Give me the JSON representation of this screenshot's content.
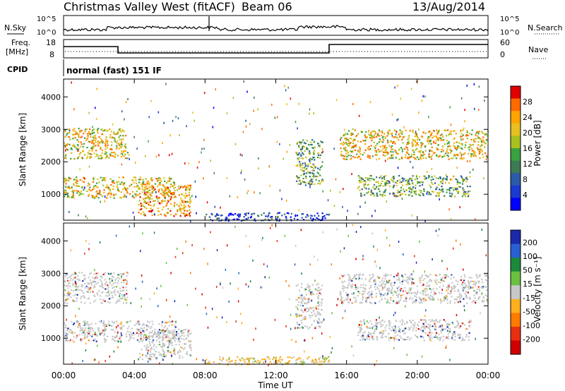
{
  "header": {
    "title": "Christmas Valley West (fitACF)",
    "beam": "Beam 06",
    "date": "13/Aug/2014"
  },
  "panels": {
    "nsky": {
      "left_label": "N.Sky",
      "left_ticks": [
        "10^5",
        "10^0"
      ],
      "right_ticks": [
        "10^5",
        "10^0"
      ],
      "right_label": "N.Search"
    },
    "freq": {
      "left_label_1": "Freq.",
      "left_label_2": "[MHz]",
      "left_ticks": [
        "18",
        "8"
      ],
      "right_ticks": [
        "60",
        "0"
      ],
      "right_label": "Nave"
    },
    "cpid": {
      "label": "CPID",
      "value": "normal (fast) 151 IF"
    }
  },
  "chart_data": [
    {
      "type": "heatmap",
      "name": "power",
      "ylabel": "Slant Range [km]",
      "yticks": [
        1000,
        2000,
        3000,
        4000
      ],
      "ylim": [
        200,
        4550
      ],
      "xticks": [
        "00:00",
        "04:00",
        "08:00",
        "12:00",
        "16:00",
        "20:00",
        "00:00"
      ],
      "xlim_hours": [
        0,
        24
      ],
      "colorbar": {
        "label": "Power [dB]",
        "ticks": [
          "28",
          "24",
          "20",
          "16",
          "12",
          "8",
          "4"
        ],
        "colors": [
          "#e00000",
          "#ff6a00",
          "#ffa500",
          "#e8c020",
          "#a8c020",
          "#3aa040",
          "#3c7a54",
          "#2a5aa8",
          "#1a3ad0",
          "#0000ff"
        ]
      },
      "bands": [
        {
          "from_h": 0.0,
          "to_h": 3.6,
          "range_km": [
            2100,
            3050
          ],
          "level": "high"
        },
        {
          "from_h": 0.0,
          "to_h": 6.3,
          "range_km": [
            900,
            1550
          ],
          "level": "high"
        },
        {
          "from_h": 4.2,
          "to_h": 7.2,
          "range_km": [
            350,
            1300
          ],
          "level": "very high"
        },
        {
          "from_h": 8.0,
          "to_h": 15.0,
          "range_km": [
            200,
            450
          ],
          "level": "low"
        },
        {
          "from_h": 13.1,
          "to_h": 14.6,
          "range_km": [
            1300,
            2700
          ],
          "level": "medium"
        },
        {
          "from_h": 15.6,
          "to_h": 24.0,
          "range_km": [
            2100,
            3000
          ],
          "level": "high"
        },
        {
          "from_h": 16.6,
          "to_h": 23.0,
          "range_km": [
            950,
            1600
          ],
          "level": "medium"
        }
      ]
    },
    {
      "type": "heatmap",
      "name": "velocity",
      "ylabel": "Slant Range [km]",
      "yticks": [
        1000,
        2000,
        3000,
        4000
      ],
      "ylim": [
        200,
        4550
      ],
      "xticks": [
        "00:00",
        "04:00",
        "08:00",
        "12:00",
        "16:00",
        "20:00",
        "00:00"
      ],
      "xlabel": "Time UT",
      "xlim_hours": [
        0,
        24
      ],
      "colorbar": {
        "label": "Velocity [m s⁻¹]",
        "ticks": [
          "200",
          "100",
          "50",
          "15",
          "-15",
          "-50",
          "-100",
          "-200"
        ],
        "colors": [
          "#1a2aa8",
          "#2860d0",
          "#1a8a3a",
          "#6ac040",
          "#c8c8c8",
          "#ffb020",
          "#ff7a00",
          "#e83010",
          "#d00000"
        ]
      },
      "bands": [
        {
          "from_h": 0.0,
          "to_h": 3.6,
          "range_km": [
            2100,
            3050
          ],
          "level": "ground"
        },
        {
          "from_h": 0.0,
          "to_h": 6.3,
          "range_km": [
            900,
            1550
          ],
          "level": "ground"
        },
        {
          "from_h": 4.2,
          "to_h": 7.2,
          "range_km": [
            350,
            1300
          ],
          "level": "ground"
        },
        {
          "from_h": 8.0,
          "to_h": 15.0,
          "range_km": [
            200,
            450
          ],
          "level": "negative"
        },
        {
          "from_h": 13.1,
          "to_h": 14.6,
          "range_km": [
            1300,
            2700
          ],
          "level": "ground"
        },
        {
          "from_h": 15.6,
          "to_h": 24.0,
          "range_km": [
            2100,
            3000
          ],
          "level": "ground"
        },
        {
          "from_h": 16.6,
          "to_h": 23.0,
          "range_km": [
            950,
            1600
          ],
          "level": "ground"
        }
      ]
    }
  ],
  "colors": {
    "axis": "#000000",
    "noise_line": "#000000"
  }
}
